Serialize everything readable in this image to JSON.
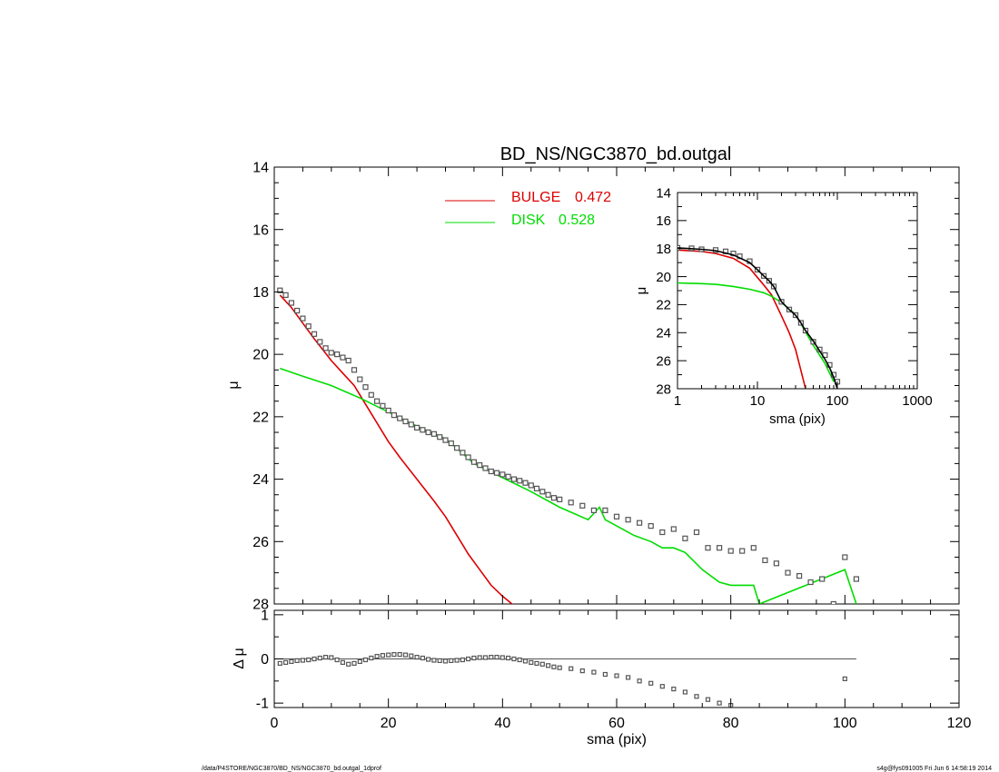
{
  "chart_data": [
    {
      "type": "scatter",
      "title": "BD_NS/NGC3870_bd.outgal",
      "xlabel": "",
      "ylabel": "μ",
      "xlim": [
        0,
        120
      ],
      "ylim": [
        28,
        14
      ],
      "yticks": [
        "14",
        "16",
        "18",
        "20",
        "22",
        "24",
        "26",
        "28"
      ],
      "legend": [
        {
          "label": "BULGE",
          "value": "0.472",
          "color": "#dd0000"
        },
        {
          "label": "DISK",
          "value": "0.528",
          "color": "#00dd00"
        }
      ],
      "series": [
        {
          "name": "BULGE",
          "style": "line",
          "color": "#dd0000",
          "x": [
            1,
            3,
            5,
            7,
            10,
            12,
            14,
            16,
            18,
            20,
            22,
            25,
            28,
            30,
            32,
            34,
            36,
            38,
            40,
            42
          ],
          "y": [
            18.1,
            18.5,
            19.0,
            19.5,
            20.2,
            20.6,
            21.0,
            21.6,
            22.2,
            22.8,
            23.3,
            24.0,
            24.7,
            25.2,
            25.8,
            26.4,
            26.9,
            27.4,
            27.75,
            28.05
          ]
        },
        {
          "name": "DISK",
          "style": "line",
          "color": "#00dd00",
          "x": [
            1,
            5,
            10,
            15,
            20,
            25,
            30,
            35,
            40,
            45,
            50,
            55,
            57,
            58,
            60,
            63,
            66,
            68,
            70,
            72,
            75,
            78,
            80,
            84,
            85,
            100,
            102
          ],
          "y": [
            20.45,
            20.7,
            21.0,
            21.4,
            21.85,
            22.3,
            22.7,
            23.5,
            23.95,
            24.4,
            24.9,
            25.3,
            24.9,
            25.3,
            25.5,
            25.8,
            26.0,
            26.2,
            26.2,
            26.35,
            26.9,
            27.3,
            27.4,
            27.4,
            28.0,
            26.9,
            28.0
          ]
        },
        {
          "name": "",
          "style": "markers",
          "color": "#555555",
          "x": [
            1,
            2,
            3,
            4,
            5,
            6,
            7,
            8,
            9,
            10,
            11,
            12,
            13,
            14,
            15,
            16,
            17,
            18,
            19,
            20,
            21,
            22,
            23,
            24,
            25,
            26,
            27,
            28,
            29,
            30,
            31,
            32,
            33,
            34,
            35,
            36,
            37,
            38,
            39,
            40,
            41,
            42,
            43,
            44,
            45,
            46,
            47,
            48,
            49,
            50,
            52,
            54,
            56,
            58,
            60,
            62,
            64,
            66,
            68,
            70,
            72,
            74,
            76,
            78,
            80,
            82,
            84,
            86,
            88,
            90,
            92,
            94,
            96,
            98,
            100,
            102
          ],
          "y": [
            17.95,
            18.1,
            18.35,
            18.6,
            18.85,
            19.1,
            19.35,
            19.6,
            19.8,
            19.95,
            20.0,
            20.1,
            20.2,
            20.5,
            20.8,
            21.05,
            21.3,
            21.5,
            21.65,
            21.8,
            21.95,
            22.05,
            22.15,
            22.25,
            22.35,
            22.42,
            22.5,
            22.55,
            22.65,
            22.75,
            22.85,
            23.0,
            23.15,
            23.3,
            23.45,
            23.55,
            23.65,
            23.75,
            23.8,
            23.85,
            23.92,
            24.0,
            24.05,
            24.12,
            24.2,
            24.3,
            24.4,
            24.5,
            24.6,
            24.65,
            24.75,
            24.85,
            25.0,
            25.0,
            25.2,
            25.3,
            25.4,
            25.5,
            25.7,
            25.6,
            25.9,
            25.7,
            26.2,
            26.2,
            26.3,
            26.3,
            26.2,
            26.6,
            26.7,
            27.0,
            27.1,
            27.3,
            27.2,
            28.0,
            26.5,
            27.2
          ]
        }
      ]
    },
    {
      "type": "scatter",
      "title": "",
      "xlabel": "sma (pix)",
      "ylabel": "Δ μ",
      "xlim": [
        0,
        120
      ],
      "ylim": [
        -1.1,
        1.1
      ],
      "xticks": [
        "0",
        "20",
        "40",
        "60",
        "80",
        "100",
        "120"
      ],
      "yticks": [
        "1",
        "0",
        "-1"
      ],
      "series": [
        {
          "name": "",
          "style": "markers",
          "color": "#555555",
          "x": [
            1,
            2,
            3,
            4,
            5,
            6,
            7,
            8,
            9,
            10,
            11,
            12,
            13,
            14,
            15,
            16,
            17,
            18,
            19,
            20,
            21,
            22,
            23,
            24,
            25,
            26,
            27,
            28,
            29,
            30,
            31,
            32,
            33,
            34,
            35,
            36,
            37,
            38,
            39,
            40,
            41,
            42,
            43,
            44,
            45,
            46,
            47,
            48,
            49,
            50,
            52,
            54,
            56,
            58,
            60,
            62,
            64,
            66,
            68,
            70,
            72,
            74,
            76,
            78,
            80,
            100
          ],
          "y": [
            -0.1,
            -0.08,
            -0.06,
            -0.04,
            -0.03,
            -0.02,
            0.0,
            0.02,
            0.04,
            0.03,
            -0.02,
            -0.08,
            -0.12,
            -0.1,
            -0.06,
            -0.02,
            0.02,
            0.06,
            0.08,
            0.09,
            0.1,
            0.1,
            0.09,
            0.07,
            0.04,
            0.02,
            -0.01,
            -0.03,
            -0.04,
            -0.05,
            -0.04,
            -0.03,
            -0.02,
            0.0,
            0.02,
            0.03,
            0.03,
            0.04,
            0.04,
            0.03,
            0.02,
            0.0,
            -0.02,
            -0.05,
            -0.08,
            -0.1,
            -0.12,
            -0.15,
            -0.18,
            -0.2,
            -0.22,
            -0.27,
            -0.3,
            -0.35,
            -0.38,
            -0.42,
            -0.5,
            -0.55,
            -0.62,
            -0.68,
            -0.75,
            -0.85,
            -0.92,
            -1.0,
            -1.05,
            -0.45
          ]
        }
      ]
    },
    {
      "type": "scatter",
      "title": "",
      "xlabel": "sma (pix)",
      "ylabel": "μ",
      "xscale": "log",
      "xlim": [
        1,
        1000
      ],
      "ylim": [
        28,
        14
      ],
      "xticks": [
        "1",
        "10",
        "100",
        "1000"
      ],
      "yticks": [
        "14",
        "16",
        "18",
        "20",
        "22",
        "24",
        "26",
        "28"
      ],
      "series": [
        {
          "name": "BULGE",
          "style": "line",
          "color": "#dd0000",
          "x": [
            1,
            2,
            3,
            5,
            8,
            12,
            15,
            20,
            25,
            30,
            35,
            40
          ],
          "y": [
            18.1,
            18.2,
            18.35,
            18.7,
            19.4,
            20.6,
            21.3,
            22.8,
            24.0,
            25.2,
            26.7,
            28.0
          ]
        },
        {
          "name": "DISK",
          "style": "line",
          "color": "#00dd00",
          "x": [
            1,
            2,
            3,
            5,
            8,
            12,
            15,
            20,
            30,
            40,
            50,
            70,
            90
          ],
          "y": [
            20.45,
            20.5,
            20.55,
            20.7,
            20.9,
            21.15,
            21.4,
            21.85,
            22.7,
            23.95,
            24.9,
            26.2,
            27.5
          ]
        },
        {
          "name": "",
          "style": "markers",
          "color": "#555555",
          "x": [
            1,
            1.5,
            2,
            3,
            4,
            5,
            6,
            8,
            10,
            12,
            14,
            16,
            20,
            25,
            30,
            35,
            40,
            50,
            60,
            70,
            80,
            90,
            100
          ],
          "y": [
            17.95,
            17.98,
            18.05,
            18.1,
            18.2,
            18.35,
            18.55,
            18.9,
            19.5,
            19.95,
            20.3,
            20.7,
            21.8,
            22.35,
            22.75,
            23.3,
            23.85,
            24.65,
            25.2,
            25.6,
            26.3,
            27.0,
            27.5
          ]
        },
        {
          "name": "",
          "style": "line",
          "color": "#000000",
          "x": [
            1,
            2,
            3,
            5,
            8,
            10,
            12,
            14,
            16,
            20,
            25,
            30,
            35,
            40,
            50,
            60,
            70,
            80,
            90,
            100
          ],
          "y": [
            17.95,
            18.05,
            18.15,
            18.45,
            19.0,
            19.5,
            19.95,
            20.3,
            20.7,
            21.8,
            22.35,
            22.75,
            23.3,
            23.85,
            24.6,
            25.3,
            25.9,
            26.5,
            27.2,
            28.0
          ]
        }
      ]
    }
  ],
  "footer": {
    "left": "/data/P4STORE/NGC3870/BD_NS/NGC3870_bd.outgal_1dprof",
    "right": "s4g@fys091005  Fri Jun  6 14:58:19 2014"
  }
}
